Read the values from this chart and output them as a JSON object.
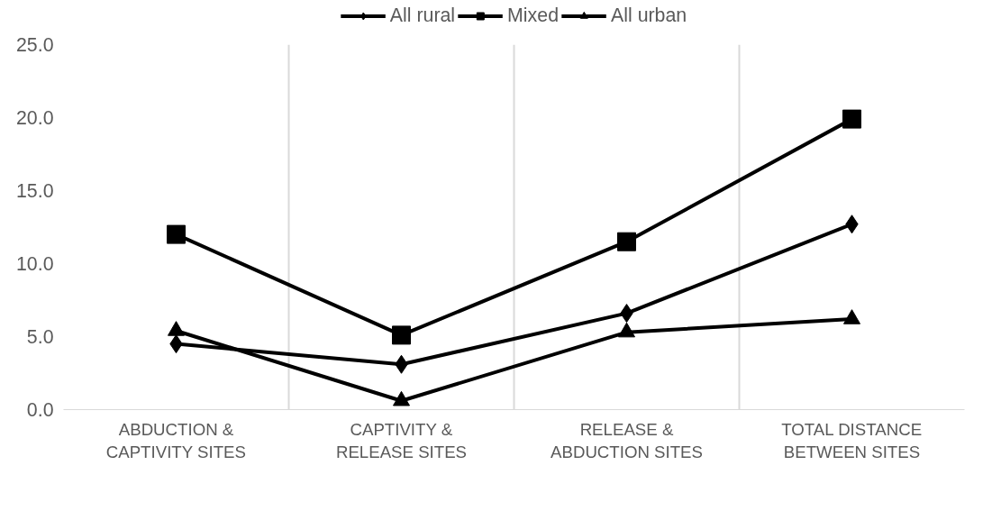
{
  "chart_data": {
    "type": "line",
    "categories": [
      "ABDUCTION &\nCAPTIVITY SITES",
      "CAPTIVITY &\nRELEASE SITES",
      "RELEASE &\nABDUCTION SITES",
      "TOTAL DISTANCE\nBETWEEN SITES"
    ],
    "series": [
      {
        "name": "All rural",
        "color": "#000000",
        "marker": "diamond",
        "values": [
          4.5,
          3.1,
          6.6,
          12.7
        ]
      },
      {
        "name": "Mixed",
        "color": "#000000",
        "marker": "square",
        "values": [
          12.0,
          5.1,
          11.5,
          19.9
        ]
      },
      {
        "name": "All urban",
        "color": "#000000",
        "marker": "triangle",
        "values": [
          5.4,
          0.6,
          5.3,
          6.2
        ]
      }
    ],
    "ylim": [
      0,
      25
    ],
    "yticks": [
      {
        "value": 0,
        "label": "0.0"
      },
      {
        "value": 5,
        "label": "5.0"
      },
      {
        "value": 10,
        "label": "10.0"
      },
      {
        "value": 15,
        "label": "15.0"
      },
      {
        "value": 20,
        "label": "20.0"
      },
      {
        "value": 25,
        "label": "25.0"
      }
    ],
    "grid": "x",
    "legend": "top",
    "line_style": "solid"
  }
}
